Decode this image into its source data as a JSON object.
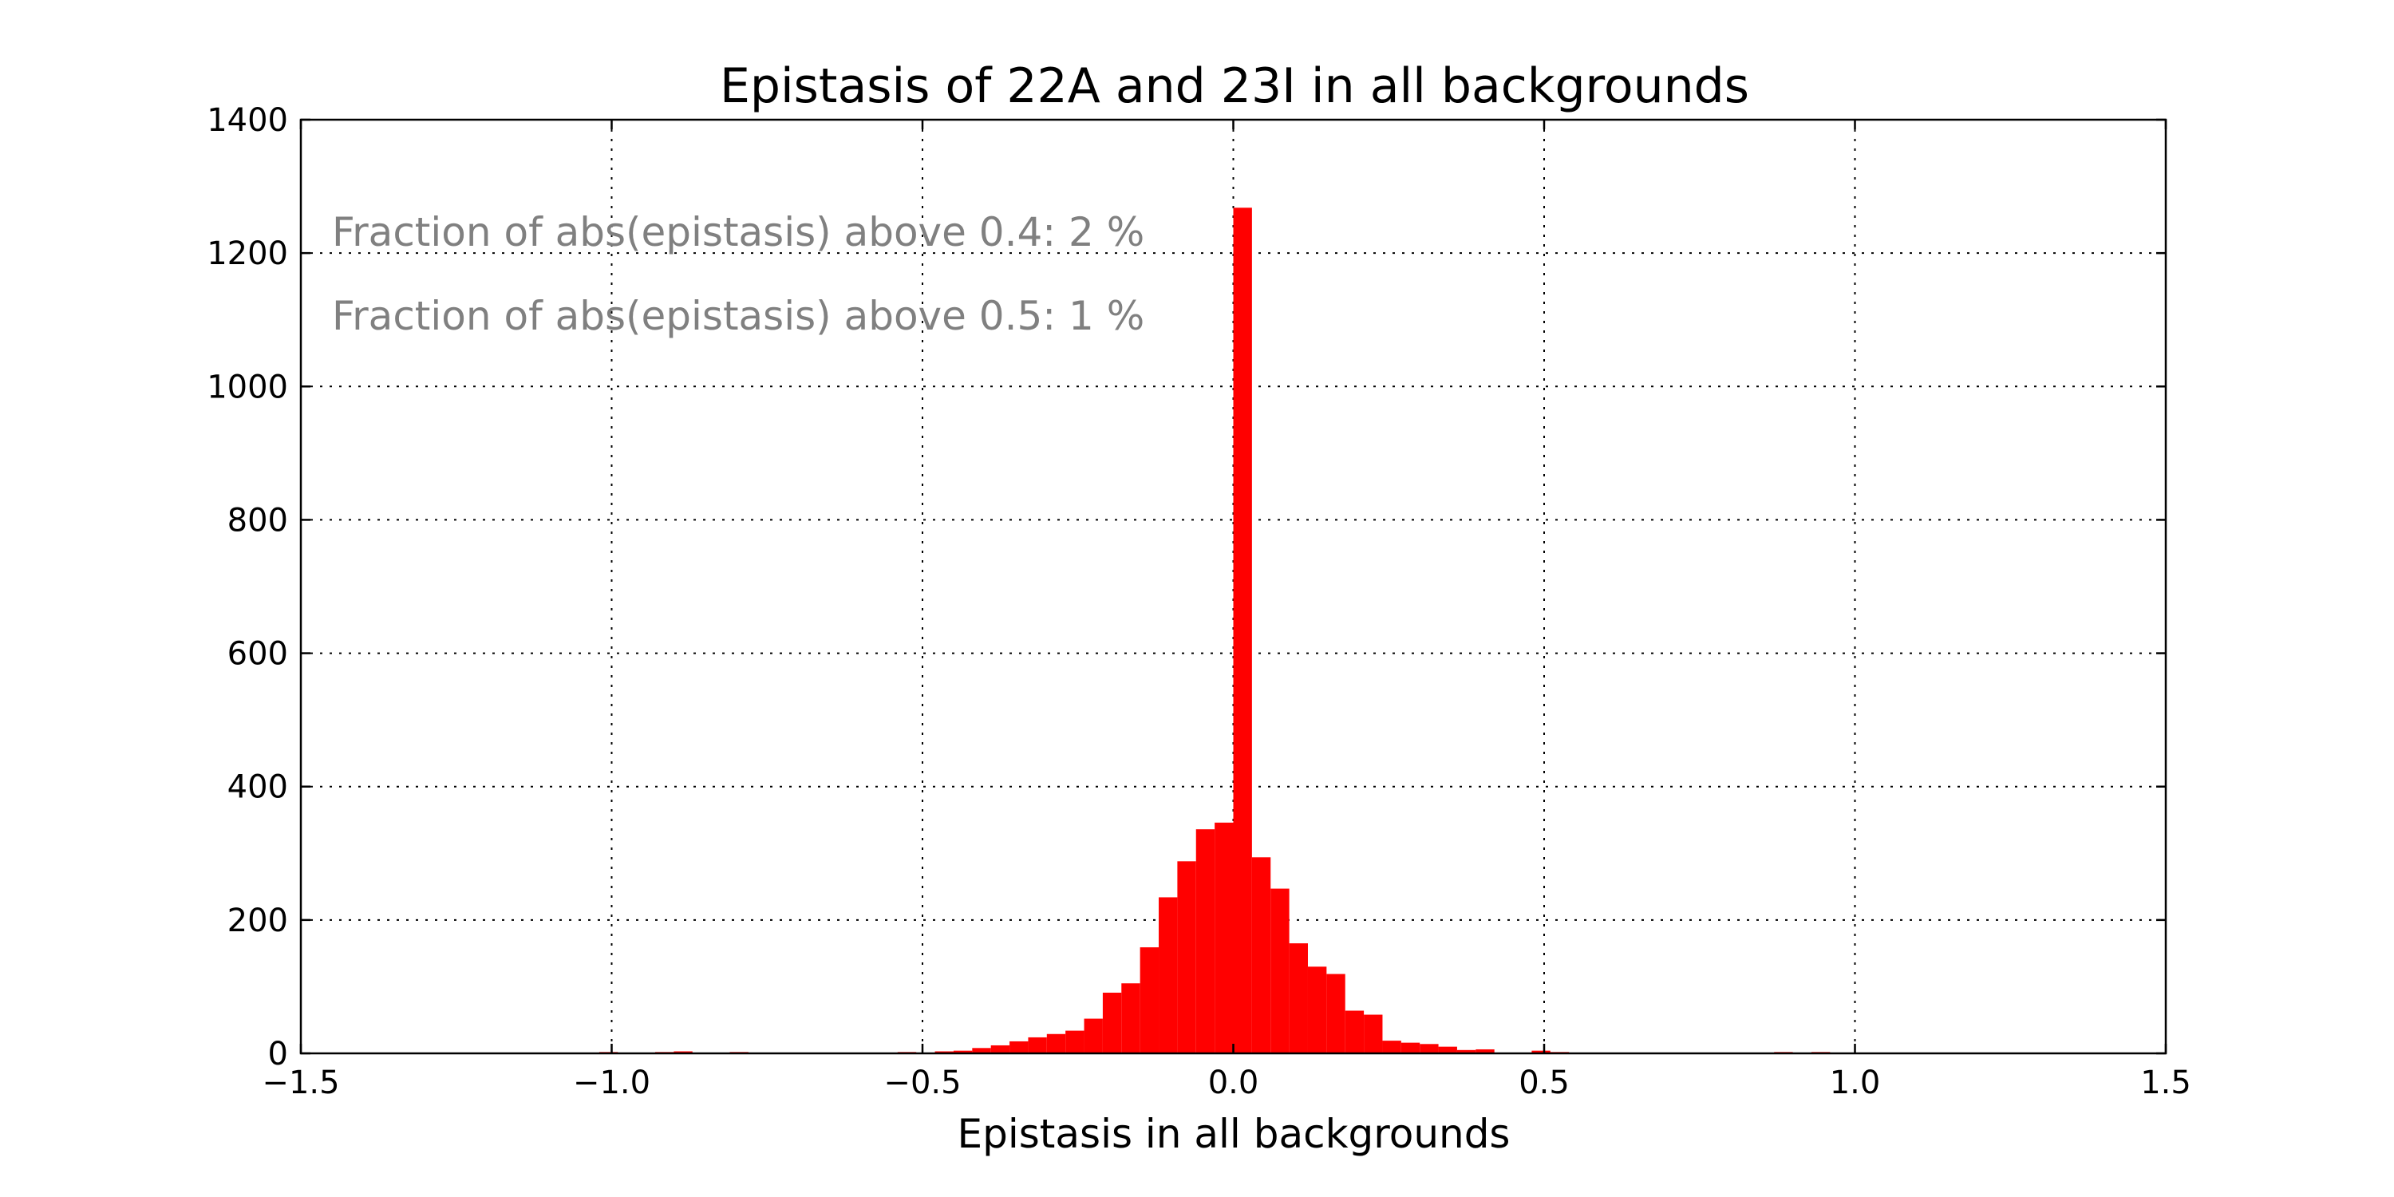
{
  "chart_data": {
    "type": "bar",
    "title": "Epistasis of 22A and 23I in all backgrounds",
    "xlabel": "Epistasis in all backgrounds",
    "ylabel": "",
    "xlim": [
      -1.5,
      1.5
    ],
    "ylim": [
      0,
      1400
    ],
    "x_ticks": [
      -1.5,
      -1.0,
      -0.5,
      0.0,
      0.5,
      1.0,
      1.5
    ],
    "x_tick_labels": [
      "−1.5",
      "−1.0",
      "−0.5",
      "0.0",
      "0.5",
      "1.0",
      "1.5"
    ],
    "y_ticks": [
      0,
      200,
      400,
      600,
      800,
      1000,
      1200,
      1400
    ],
    "y_tick_labels": [
      "0",
      "200",
      "400",
      "600",
      "800",
      "1000",
      "1200",
      "1400"
    ],
    "grid": true,
    "bar_color": "#ff0000",
    "annotation_color": "#808080",
    "annotations": [
      "Fraction of abs(epistasis) above 0.4: 2 %",
      "Fraction of abs(epistasis) above 0.5: 1 %"
    ],
    "bin_width": 0.03,
    "bins": [
      {
        "x0": -1.02,
        "count": 2
      },
      {
        "x0": -0.93,
        "count": 2
      },
      {
        "x0": -0.9,
        "count": 3
      },
      {
        "x0": -0.81,
        "count": 2
      },
      {
        "x0": -0.54,
        "count": 2
      },
      {
        "x0": -0.48,
        "count": 3
      },
      {
        "x0": -0.45,
        "count": 4
      },
      {
        "x0": -0.42,
        "count": 8
      },
      {
        "x0": -0.39,
        "count": 12
      },
      {
        "x0": -0.36,
        "count": 18
      },
      {
        "x0": -0.33,
        "count": 24
      },
      {
        "x0": -0.3,
        "count": 29
      },
      {
        "x0": -0.27,
        "count": 34
      },
      {
        "x0": -0.24,
        "count": 52
      },
      {
        "x0": -0.21,
        "count": 91
      },
      {
        "x0": -0.18,
        "count": 105
      },
      {
        "x0": -0.15,
        "count": 159
      },
      {
        "x0": -0.12,
        "count": 234
      },
      {
        "x0": -0.09,
        "count": 288
      },
      {
        "x0": -0.06,
        "count": 336
      },
      {
        "x0": -0.03,
        "count": 346
      },
      {
        "x0": 0.0,
        "count": 1268
      },
      {
        "x0": 0.03,
        "count": 294
      },
      {
        "x0": 0.06,
        "count": 247
      },
      {
        "x0": 0.09,
        "count": 165
      },
      {
        "x0": 0.12,
        "count": 130
      },
      {
        "x0": 0.15,
        "count": 119
      },
      {
        "x0": 0.18,
        "count": 64
      },
      {
        "x0": 0.21,
        "count": 58
      },
      {
        "x0": 0.24,
        "count": 19
      },
      {
        "x0": 0.27,
        "count": 16
      },
      {
        "x0": 0.3,
        "count": 14
      },
      {
        "x0": 0.33,
        "count": 10
      },
      {
        "x0": 0.36,
        "count": 5
      },
      {
        "x0": 0.39,
        "count": 6
      },
      {
        "x0": 0.48,
        "count": 4
      },
      {
        "x0": 0.51,
        "count": 2
      },
      {
        "x0": 0.87,
        "count": 2
      },
      {
        "x0": 0.93,
        "count": 2
      }
    ]
  }
}
